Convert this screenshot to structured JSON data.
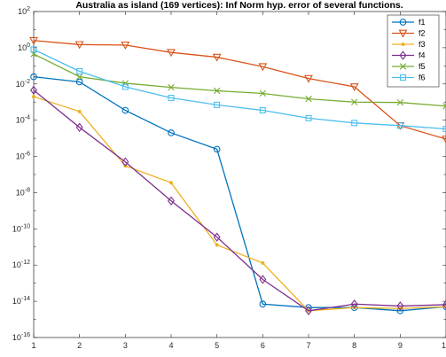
{
  "chart_data": {
    "type": "line",
    "title": "Australia as island (169 vertices): Inf Norm hyp. error of several functions.",
    "xlabel": "",
    "ylabel": "",
    "x": [
      1,
      2,
      3,
      4,
      5,
      6,
      7,
      8,
      9,
      10
    ],
    "xlim": [
      1,
      10
    ],
    "x_ticks": [
      "1",
      "2",
      "3",
      "4",
      "5",
      "6",
      "7",
      "8",
      "9",
      "10"
    ],
    "y_scale": "log",
    "ylim": [
      1e-16,
      100
    ],
    "y_tick_exponents": [
      2,
      0,
      -2,
      -4,
      -6,
      -8,
      -10,
      -12,
      -14,
      -16
    ],
    "y_tick_base": "10",
    "legend_position": "top-right",
    "grid": false,
    "series": [
      {
        "name": "f1",
        "color": "#0072BD",
        "marker": "circle",
        "values": [
          0.025,
          0.013,
          0.00035,
          2e-05,
          2.5e-06,
          7e-15,
          4.5e-15,
          4.5e-15,
          3e-15,
          5e-15
        ]
      },
      {
        "name": "f2",
        "color": "#D95319",
        "marker": "triangle-down",
        "values": [
          2.5,
          1.5,
          1.4,
          0.55,
          0.3,
          0.09,
          0.02,
          0.007,
          5e-05,
          9e-06
        ]
      },
      {
        "name": "f3",
        "color": "#EDB120",
        "marker": "dot",
        "values": [
          0.002,
          0.0003,
          3e-07,
          3.5e-08,
          1.3e-11,
          1.3e-12,
          3e-15,
          4.5e-15,
          4e-15,
          5e-15
        ]
      },
      {
        "name": "f4",
        "color": "#7E2F8E",
        "marker": "diamond",
        "values": [
          0.0045,
          4e-05,
          5e-07,
          3.5e-09,
          3.5e-11,
          1.6e-13,
          3e-15,
          7e-15,
          5.5e-15,
          6.5e-15
        ]
      },
      {
        "name": "f5",
        "color": "#77AC30",
        "marker": "x",
        "values": [
          0.45,
          0.025,
          0.011,
          0.0065,
          0.0042,
          0.003,
          0.0015,
          0.001,
          0.00095,
          0.0006
        ]
      },
      {
        "name": "f6",
        "color": "#4DBEEE",
        "marker": "square",
        "values": [
          0.8,
          0.05,
          0.007,
          0.0017,
          0.0007,
          0.00035,
          0.00013,
          7e-05,
          5e-05,
          3.3e-05
        ]
      }
    ]
  }
}
